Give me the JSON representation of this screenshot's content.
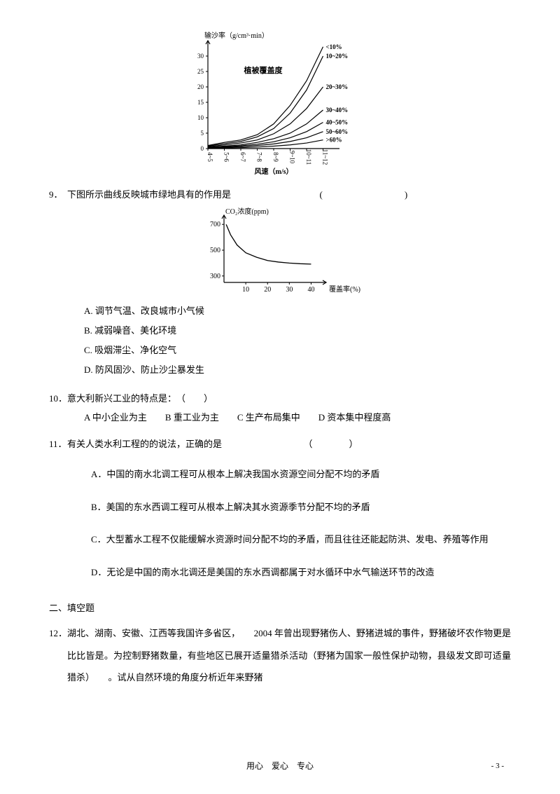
{
  "chart1": {
    "type": "line",
    "title": "",
    "ylabel": "输沙率（g/cm³·min）",
    "xlabel": "风速（m/s）",
    "center_label": "植被覆盖度",
    "xlim": [
      0,
      8
    ],
    "ylim": [
      0,
      35
    ],
    "yticks": [
      0,
      5,
      10,
      15,
      20,
      25,
      30
    ],
    "xticks_labels": [
      "4~5",
      "5~6",
      "6~7",
      "7~8",
      "8~9",
      "9~10",
      "10~11",
      "11~12"
    ],
    "series": [
      {
        "label": "<10%",
        "color": "#000000",
        "points": [
          [
            0,
            1.0
          ],
          [
            1,
            2.0
          ],
          [
            2,
            2.8
          ],
          [
            3,
            4.5
          ],
          [
            4,
            8.0
          ],
          [
            5,
            14.0
          ],
          [
            6,
            22.0
          ],
          [
            7,
            33.0
          ]
        ]
      },
      {
        "label": "10~20%",
        "color": "#000000",
        "points": [
          [
            0,
            0.8
          ],
          [
            1,
            1.6
          ],
          [
            2,
            2.3
          ],
          [
            3,
            3.8
          ],
          [
            4,
            6.5
          ],
          [
            5,
            11.5
          ],
          [
            6,
            19.0
          ],
          [
            7,
            30.0
          ]
        ]
      },
      {
        "label": "20~30%",
        "color": "#000000",
        "points": [
          [
            0,
            0.6
          ],
          [
            1,
            1.2
          ],
          [
            2,
            1.8
          ],
          [
            3,
            2.8
          ],
          [
            4,
            4.8
          ],
          [
            5,
            8.0
          ],
          [
            6,
            13.0
          ],
          [
            7,
            20.0
          ]
        ]
      },
      {
        "label": "30~40%",
        "color": "#000000",
        "points": [
          [
            0,
            0.4
          ],
          [
            1,
            0.8
          ],
          [
            2,
            1.2
          ],
          [
            3,
            2.0
          ],
          [
            4,
            3.2
          ],
          [
            5,
            5.0
          ],
          [
            6,
            8.0
          ],
          [
            7,
            12.5
          ]
        ]
      },
      {
        "label": "40~50%",
        "color": "#000000",
        "points": [
          [
            0,
            0.3
          ],
          [
            1,
            0.6
          ],
          [
            2,
            0.9
          ],
          [
            3,
            1.4
          ],
          [
            4,
            2.2
          ],
          [
            5,
            3.5
          ],
          [
            6,
            5.5
          ],
          [
            7,
            8.5
          ]
        ]
      },
      {
        "label": "50~60%",
        "color": "#000000",
        "points": [
          [
            0,
            0.2
          ],
          [
            1,
            0.4
          ],
          [
            2,
            0.6
          ],
          [
            3,
            1.0
          ],
          [
            4,
            1.5
          ],
          [
            5,
            2.3
          ],
          [
            6,
            3.5
          ],
          [
            7,
            5.5
          ]
        ]
      },
      {
        "label": ">60%",
        "color": "#000000",
        "points": [
          [
            0,
            0.1
          ],
          [
            1,
            0.2
          ],
          [
            2,
            0.3
          ],
          [
            3,
            0.5
          ],
          [
            4,
            0.8
          ],
          [
            5,
            1.2
          ],
          [
            6,
            1.8
          ],
          [
            7,
            2.8
          ]
        ]
      }
    ],
    "label_fontsize": 10,
    "tick_fontsize": 9,
    "line_width": 1.2,
    "axis_color": "#000000",
    "background_color": "#ffffff"
  },
  "q9": {
    "num": "9．",
    "stem": "下图所示曲线反映城市绿地具有的作用是",
    "paren": "(　　　　　　　　　)",
    "optA": "A. 调节气温、改良城市小气候",
    "optB": "B. 减弱噪音、美化环境",
    "optC": "C. 吸烟滞尘、净化空气",
    "optD": "D. 防风固沙、防止沙尘暴发生"
  },
  "chart2": {
    "type": "line",
    "ylabel": "CO₂浓度(ppm)",
    "xlabel": "覆盖率(%)",
    "xlim": [
      0,
      45
    ],
    "ylim": [
      250,
      750
    ],
    "yticks": [
      300,
      500,
      700
    ],
    "xticks": [
      10,
      20,
      30,
      40
    ],
    "points": [
      [
        1,
        700
      ],
      [
        3,
        620
      ],
      [
        6,
        540
      ],
      [
        10,
        480
      ],
      [
        15,
        445
      ],
      [
        20,
        420
      ],
      [
        25,
        408
      ],
      [
        30,
        400
      ],
      [
        35,
        395
      ],
      [
        40,
        392
      ]
    ],
    "line_color": "#000000",
    "line_width": 1.3,
    "axis_color": "#000000",
    "label_fontsize": 10,
    "tick_fontsize": 10,
    "background_color": "#ffffff"
  },
  "q10": {
    "num": "10．",
    "stem": "意大利新兴工业的特点是：　（　　）",
    "opts": "A 中小企业为主　　B  重工业为主　　C  生产布局集中　　D  资本集中程度高"
  },
  "q11": {
    "num": "11．",
    "stem": "有关人类水利工程的的说法，正确的是",
    "paren": "（　　　　）",
    "optA": "A．中国的南水北调工程可从根本上解决我国水资源空间分配不均的矛盾",
    "optB": "B．美国的东水西调工程可从根本上解决其水资源季节分配不均的矛盾",
    "optC": "C．大型蓄水工程不仅能缓解水资源时间分配不均的矛盾，而且往往还能起防洪、发电、养殖等作用",
    "optD": "D．无论是中国的南水北调还是美国的东水西调都属于对水循环中水气输送环节的改造"
  },
  "section2": "二、填空题",
  "q12": {
    "num": "12．",
    "text": "湖北、湖南、安徽、江西等我国许多省区，　　2004 年曾出现野猪伤人、野猪进城的事件，野猪破坏农作物更是比比皆是。为控制野猪数量，有些地区已展开适量猎杀活动（野猪为国家一般性保护动物，县级发文即可适量猎杀）　　。试从自然环境的角度分析近年来野猪"
  },
  "footer": "用心　爱心　专心",
  "pagenum": "- 3 -"
}
